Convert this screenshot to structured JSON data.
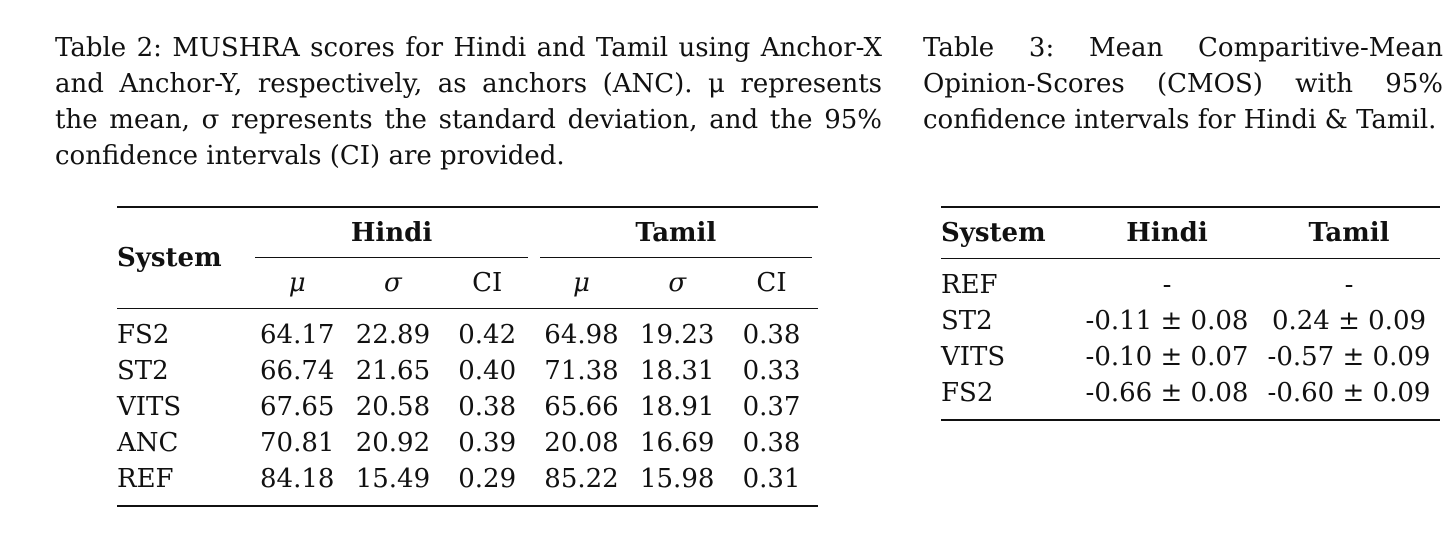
{
  "table2": {
    "caption": "Table 2: MUSHRA scores for Hindi and Tamil using Anchor-X and Anchor-Y, respectively, as anchors (ANC). μ represents the mean, σ represents the standard deviation, and the 95% confidence intervals (CI) are provided.",
    "header": {
      "system": "System",
      "group1": "Hindi",
      "group2": "Tamil",
      "sub": [
        "μ",
        "σ",
        "CI",
        "μ",
        "σ",
        "CI"
      ]
    },
    "rows": [
      [
        "FS2",
        "64.17",
        "22.89",
        "0.42",
        "64.98",
        "19.23",
        "0.38"
      ],
      [
        "ST2",
        "66.74",
        "21.65",
        "0.40",
        "71.38",
        "18.31",
        "0.33"
      ],
      [
        "VITS",
        "67.65",
        "20.58",
        "0.38",
        "65.66",
        "18.91",
        "0.37"
      ],
      [
        "ANC",
        "70.81",
        "20.92",
        "0.39",
        "20.08",
        "16.69",
        "0.38"
      ],
      [
        "REF",
        "84.18",
        "15.49",
        "0.29",
        "85.22",
        "15.98",
        "0.31"
      ]
    ]
  },
  "table3": {
    "caption": "Table 3: Mean Comparitive-Mean Opinion-Scores (CMOS) with 95% confidence intervals for Hindi & Tamil.",
    "header": [
      "System",
      "Hindi",
      "Tamil"
    ],
    "rows": [
      [
        "REF",
        "-",
        "-"
      ],
      [
        "ST2",
        "-0.11 ± 0.08",
        "0.24 ± 0.09"
      ],
      [
        "VITS",
        "-0.10 ± 0.07",
        "-0.57 ± 0.09"
      ],
      [
        "FS2",
        "-0.66 ± 0.08",
        "-0.60 ± 0.09"
      ]
    ]
  }
}
